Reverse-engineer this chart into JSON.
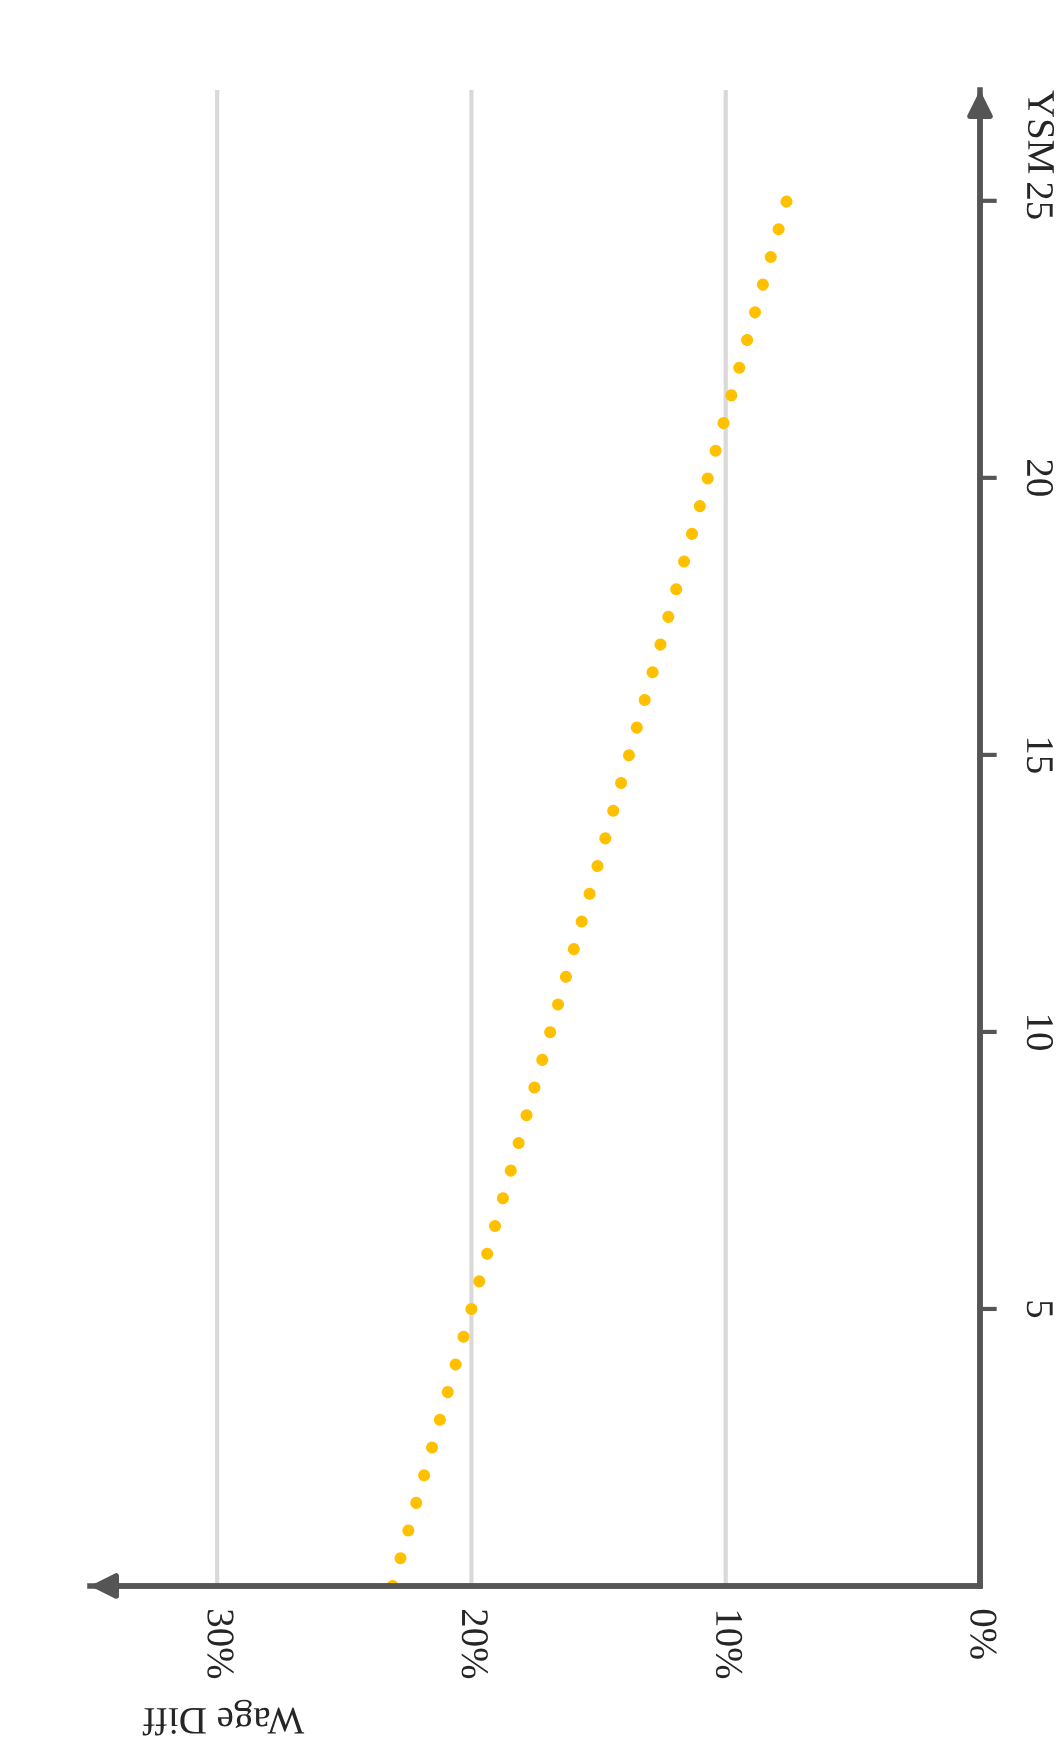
{
  "chart_data": {
    "type": "line",
    "xlabel": "Wage Diff",
    "ylabel": "YSM",
    "x": [
      23.1,
      7.6
    ],
    "series": [
      {
        "color": "#ffc000",
        "values": [
          0,
          25
        ]
      }
    ],
    "line_style": "dotted",
    "xlim": [
      35,
      0
    ],
    "xticks": [
      {
        "value": 0,
        "label": "0%"
      },
      {
        "value": 10,
        "label": "10%"
      },
      {
        "value": 20,
        "label": "20%"
      },
      {
        "value": 30,
        "label": "30%"
      }
    ],
    "ylim": [
      0,
      27
    ],
    "yticks": [
      5,
      10,
      15,
      20,
      25
    ],
    "grid": "x",
    "legend": false
  }
}
